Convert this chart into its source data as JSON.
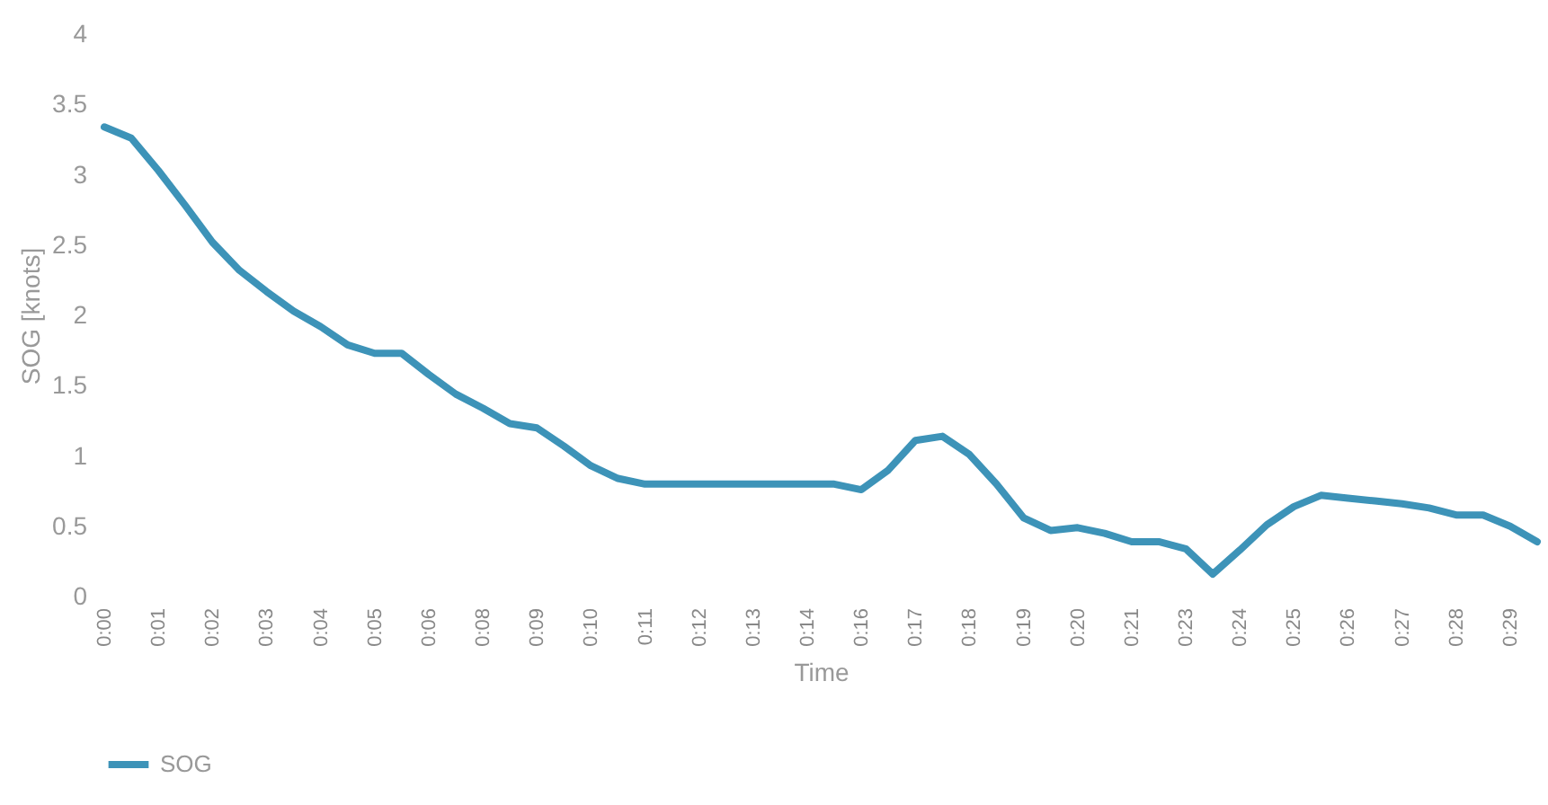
{
  "chart_data": {
    "type": "line",
    "xlabel": "Time",
    "ylabel": "SOG  [knots]",
    "categories": [
      "0:00",
      null,
      "0:01",
      null,
      "0:02",
      null,
      "0:03",
      null,
      "0:04",
      null,
      "0:05",
      null,
      "0:06",
      null,
      "0:08",
      null,
      "0:09",
      null,
      "0:10",
      null,
      "0:11",
      null,
      "0:12",
      null,
      "0:13",
      null,
      "0:14",
      null,
      "0:16",
      null,
      "0:17",
      null,
      "0:18",
      null,
      "0:19",
      null,
      "0:20",
      null,
      "0:21",
      null,
      "0:23",
      null,
      "0:24",
      null,
      "0:25",
      null,
      "0:26",
      null,
      "0:27",
      null,
      "0:28",
      null,
      "0:29",
      null
    ],
    "series": [
      {
        "name": "SOG",
        "color": "#3d93b8",
        "values": [
          3.34,
          3.26,
          3.03,
          2.78,
          2.52,
          2.32,
          2.17,
          2.03,
          1.92,
          1.79,
          1.73,
          1.73,
          1.58,
          1.44,
          1.34,
          1.23,
          1.2,
          1.07,
          0.93,
          0.84,
          0.8,
          0.8,
          0.8,
          0.8,
          0.8,
          0.8,
          0.8,
          0.8,
          0.76,
          0.9,
          1.11,
          1.14,
          1.01,
          0.8,
          0.56,
          0.47,
          0.49,
          0.45,
          0.39,
          0.39,
          0.34,
          0.16,
          0.33,
          0.51,
          0.64,
          0.72,
          0.7,
          0.68,
          0.66,
          0.63,
          0.58,
          0.58,
          0.5,
          0.39
        ]
      }
    ],
    "ylim": [
      0,
      4
    ],
    "yticks": [
      0,
      0.5,
      1,
      1.5,
      2,
      2.5,
      3,
      3.5,
      4
    ],
    "grid": false,
    "legend": "bottom",
    "marker": "none",
    "line_style": "solid"
  }
}
